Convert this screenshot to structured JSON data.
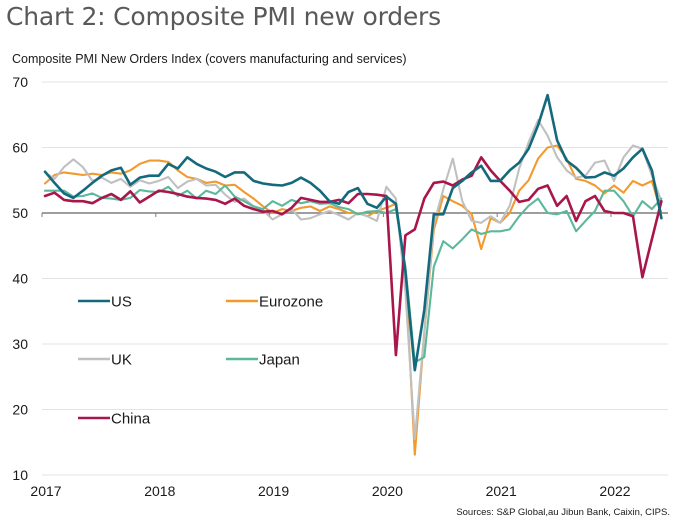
{
  "header": {
    "title": "Chart 2: Composite PMI new orders",
    "subtitle": "Composite PMI New Orders Index (covers manufacturing and services)"
  },
  "footer": {
    "source": "Sources: S&P Global,au Jibun Bank, Caixin, CIPS."
  },
  "chart_data": {
    "type": "line",
    "title": "Chart 2: Composite PMI new orders",
    "subtitle": "Composite PMI New Orders Index (covers manufacturing and services)",
    "xlabel": "",
    "ylabel": "",
    "x_start": "2017-01",
    "x_end": "2022-06",
    "frequency": "monthly",
    "x_tick_labels": [
      "2017",
      "2018",
      "2019",
      "2020",
      "2021",
      "2022"
    ],
    "y_tick_labels": [
      "10",
      "20",
      "30",
      "40",
      "50",
      "60",
      "70"
    ],
    "ylim": [
      10,
      70
    ],
    "reference_line": 50,
    "grid": true,
    "legend_placement": "inside-left",
    "series": [
      {
        "name": "US",
        "color": "#146a7c",
        "values": [
          56.3,
          54.6,
          53.0,
          52.3,
          53.4,
          54.6,
          55.7,
          56.5,
          56.9,
          54.3,
          55.4,
          55.7,
          55.7,
          57.5,
          56.8,
          58.5,
          57.5,
          56.8,
          56.3,
          55.5,
          56.2,
          56.2,
          54.9,
          54.5,
          54.3,
          54.2,
          54.6,
          55.4,
          54.6,
          53.4,
          51.8,
          51.4,
          53.2,
          53.8,
          51.4,
          50.8,
          52.5,
          51.4,
          41.1,
          26.0,
          35.2,
          49.8,
          49.8,
          53.8,
          54.9,
          56.2,
          57.2,
          54.9,
          54.9,
          56.5,
          57.7,
          59.8,
          63.4,
          68.0,
          61.1,
          58.0,
          56.9,
          55.4,
          55.5,
          56.2,
          55.7,
          56.8,
          58.5,
          59.8,
          56.5,
          49.2
        ]
      },
      {
        "name": "Eurozone",
        "color": "#f29a2e",
        "values": [
          54.5,
          55.8,
          56.2,
          56.0,
          55.8,
          56.0,
          55.8,
          56.2,
          56.0,
          56.5,
          57.5,
          58.0,
          58.0,
          57.8,
          56.5,
          55.5,
          55.2,
          54.6,
          54.8,
          54.2,
          54.3,
          53.2,
          52.2,
          51.0,
          50.0,
          50.6,
          50.3,
          50.8,
          51.0,
          50.3,
          51.0,
          50.6,
          50.0,
          50.0,
          49.5,
          50.3,
          50.8,
          51.4,
          41.0,
          13.1,
          31.8,
          47.4,
          52.6,
          51.8,
          51.1,
          49.8,
          44.5,
          49.2,
          48.5,
          50.0,
          53.4,
          55.0,
          58.3,
          60.0,
          60.3,
          58.3,
          55.2,
          54.9,
          54.2,
          53.0,
          54.2,
          53.1,
          54.9,
          54.2,
          54.9,
          50.0
        ]
      },
      {
        "name": "UK",
        "color": "#c0c0c0",
        "values": [
          56.2,
          55.2,
          57.0,
          58.2,
          57.0,
          54.9,
          55.4,
          54.6,
          55.2,
          54.0,
          55.0,
          54.5,
          54.9,
          55.5,
          53.8,
          54.8,
          55.2,
          54.2,
          54.3,
          52.8,
          51.7,
          52.2,
          51.0,
          50.4,
          49.0,
          49.8,
          50.6,
          49.0,
          49.2,
          49.8,
          50.3,
          49.7,
          49.0,
          50.0,
          49.5,
          48.8,
          54.0,
          52.2,
          38.0,
          15.5,
          31.8,
          48.3,
          53.6,
          58.3,
          51.8,
          48.8,
          48.5,
          49.5,
          48.5,
          51.1,
          56.8,
          60.8,
          64.2,
          61.8,
          58.5,
          56.5,
          55.4,
          55.7,
          57.7,
          58.0,
          54.9,
          58.5,
          60.3,
          59.8,
          55.7,
          51.8
        ]
      },
      {
        "name": "Japan",
        "color": "#5cb89a",
        "values": [
          53.4,
          53.4,
          53.4,
          52.5,
          52.6,
          53.0,
          52.3,
          52.2,
          52.0,
          52.3,
          53.5,
          53.3,
          53.2,
          54.0,
          52.6,
          53.4,
          52.2,
          53.4,
          52.9,
          54.2,
          52.5,
          51.8,
          51.0,
          50.6,
          51.8,
          51.1,
          52.0,
          51.5,
          51.8,
          51.4,
          51.5,
          50.9,
          50.6,
          49.8,
          50.2,
          50.3,
          50.0,
          50.6,
          41.8,
          27.2,
          28.0,
          41.8,
          45.7,
          44.6,
          46.0,
          47.5,
          46.8,
          47.2,
          47.2,
          47.5,
          49.5,
          51.1,
          52.2,
          50.0,
          49.8,
          50.3,
          47.2,
          48.8,
          50.3,
          53.4,
          53.4,
          51.8,
          49.5,
          51.8,
          50.6,
          52.2
        ]
      },
      {
        "name": "China",
        "color": "#a8164b",
        "values": [
          52.6,
          53.1,
          52.0,
          51.8,
          51.8,
          51.5,
          52.3,
          52.9,
          52.0,
          53.3,
          51.6,
          52.5,
          53.4,
          53.2,
          52.9,
          52.5,
          52.3,
          52.2,
          52.0,
          51.4,
          52.2,
          51.1,
          50.6,
          50.2,
          50.3,
          49.8,
          50.8,
          52.3,
          52.0,
          51.7,
          51.7,
          52.0,
          51.5,
          52.9,
          52.9,
          52.8,
          52.6,
          28.3,
          46.6,
          47.5,
          52.2,
          54.6,
          54.8,
          54.2,
          55.1,
          55.7,
          58.5,
          56.5,
          54.9,
          53.4,
          51.7,
          52.0,
          53.7,
          54.2,
          51.1,
          52.6,
          48.8,
          51.8,
          52.6,
          50.3,
          50.0,
          50.0,
          49.5,
          40.2,
          46.0,
          51.8
        ]
      }
    ]
  }
}
